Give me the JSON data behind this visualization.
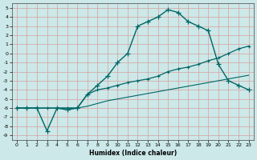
{
  "xlabel": "Humidex (Indice chaleur)",
  "bg_color": "#cce8e8",
  "grid_color": "#dddddd",
  "line_color": "#006666",
  "xlim": [
    -0.5,
    23.5
  ],
  "ylim": [
    -9.5,
    5.5
  ],
  "xtick_vals": [
    0,
    1,
    2,
    3,
    4,
    5,
    6,
    7,
    8,
    9,
    10,
    11,
    12,
    13,
    14,
    15,
    16,
    17,
    18,
    19,
    20,
    21,
    22,
    23
  ],
  "ytick_vals": [
    5,
    4,
    3,
    2,
    1,
    0,
    -1,
    -2,
    -3,
    -4,
    -5,
    -6,
    -7,
    -8,
    -9
  ],
  "line1_x": [
    0,
    1,
    2,
    3,
    4,
    5,
    6,
    7,
    8,
    9,
    10,
    11,
    12,
    13,
    14,
    15,
    16,
    17,
    18,
    19,
    20,
    21,
    22,
    23
  ],
  "line1_y": [
    -6,
    -6,
    -6,
    -8.5,
    -6,
    -6.2,
    -6,
    -4.5,
    -3.5,
    -2.5,
    -1,
    0,
    3,
    3.5,
    4,
    4.8,
    4.5,
    3.5,
    3,
    2.5,
    -1.2,
    -3,
    -3.5,
    -4
  ],
  "line2_x": [
    0,
    1,
    2,
    3,
    4,
    5,
    6,
    7,
    8,
    9,
    10,
    11,
    12,
    13,
    14,
    15,
    16,
    17,
    18,
    19,
    20,
    21,
    22,
    23
  ],
  "line2_y": [
    -6,
    -6,
    -6,
    -6,
    -6,
    -6,
    -6,
    -4.5,
    -4,
    -3.8,
    -3.5,
    -3.2,
    -3,
    -2.8,
    -2.5,
    -2,
    -1.7,
    -1.5,
    -1.2,
    -0.8,
    -0.5,
    0,
    0.5,
    0.8
  ],
  "line3_x": [
    0,
    1,
    2,
    3,
    4,
    5,
    6,
    7,
    8,
    9,
    10,
    11,
    12,
    13,
    14,
    15,
    16,
    17,
    18,
    19,
    20,
    21,
    22,
    23
  ],
  "line3_y": [
    -6,
    -6,
    -6,
    -6,
    -6,
    -6,
    -6,
    -5.8,
    -5.5,
    -5.2,
    -5,
    -4.8,
    -4.6,
    -4.4,
    -4.2,
    -4,
    -3.8,
    -3.6,
    -3.4,
    -3.2,
    -3,
    -2.8,
    -2.6,
    -2.4
  ]
}
